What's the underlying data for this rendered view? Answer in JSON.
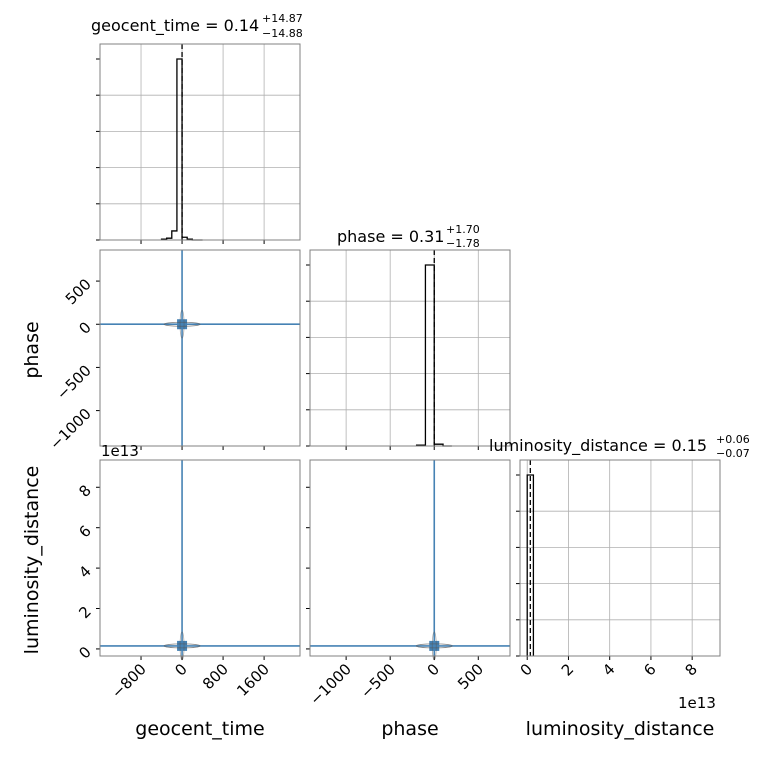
{
  "figure": {
    "type": "corner"
  },
  "colors": {
    "scatter": "#4682b4",
    "hist": "#000000",
    "grid": "#b0b0b0",
    "frame": "#808080"
  },
  "chart_data": {
    "type": "corner",
    "parameters": [
      "geocent_time",
      "phase",
      "luminosity_distance"
    ],
    "titles": {
      "geocent_time": {
        "name": "geocent_time",
        "median": "0.14",
        "plus": "+14.87",
        "minus": "−14.88"
      },
      "phase": {
        "name": "phase",
        "median": "0.31",
        "plus": "+1.70",
        "minus": "−1.78"
      },
      "luminosity_distance": {
        "name": "luminosity_distance",
        "median": "0.15",
        "plus": "+0.06",
        "minus": "−0.07"
      }
    },
    "axis_labels": {
      "x": [
        "geocent_time",
        "phase",
        "luminosity_distance"
      ],
      "y": [
        "phase",
        "luminosity_distance"
      ]
    },
    "offset_text": {
      "lumdist_y": "1e13",
      "lumdist_x": "1e13"
    },
    "ticks": {
      "geocent_time": {
        "values": [
          -800,
          0,
          800,
          1600
        ],
        "labels": [
          "−800",
          "0",
          "800",
          "1600"
        ],
        "range": [
          -1600,
          2300
        ]
      },
      "phase": {
        "values": [
          -1000,
          -500,
          0,
          500
        ],
        "labels": [
          "−1000",
          "−500",
          "0",
          "500"
        ],
        "range": [
          -1410,
          860
        ]
      },
      "luminosity_distance": {
        "values": [
          0,
          2,
          4,
          6,
          8
        ],
        "labels": [
          "0",
          "2",
          "4",
          "6",
          "8"
        ],
        "range": [
          -0.35,
          9.35
        ],
        "unit_scale": "1e13"
      }
    },
    "histograms": {
      "geocent_time": {
        "bin_edges": [
          -400,
          -300,
          -200,
          -100,
          0,
          100,
          200,
          300,
          400
        ],
        "counts": [
          0.005,
          0.01,
          0.05,
          1.0,
          0.015,
          0.005,
          0.0,
          0.0
        ],
        "median": 0.14
      },
      "phase": {
        "bin_edges": [
          -200,
          -100,
          0,
          100,
          200
        ],
        "counts": [
          0.005,
          1.0,
          0.01,
          0.0
        ],
        "median": 0.31
      },
      "luminosity_distance": {
        "bin_edges": [
          0,
          0.3
        ],
        "counts": [
          1.0
        ],
        "median": 0.15
      }
    },
    "scatter": {
      "geocent_time_phase": {
        "center": [
          0.14,
          0.31
        ]
      },
      "geocent_time_luminosity_distance": {
        "center": [
          0.14,
          0.15
        ]
      },
      "phase_luminosity_distance": {
        "center": [
          0.31,
          0.15
        ]
      }
    }
  }
}
